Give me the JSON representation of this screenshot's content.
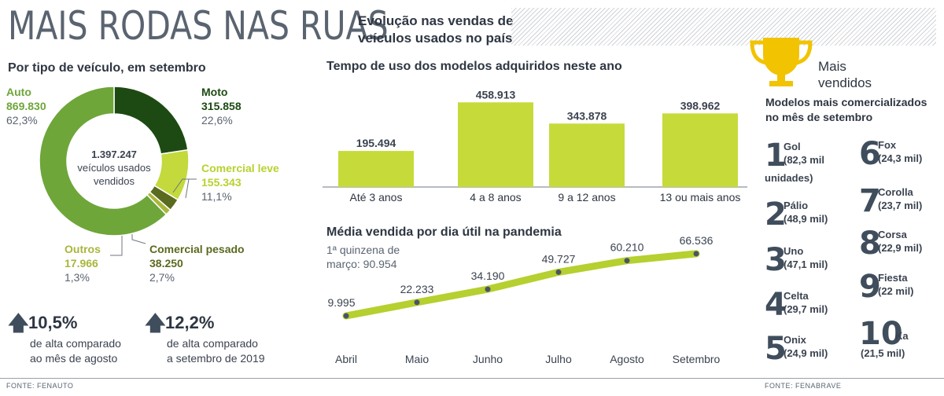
{
  "header": {
    "title": "MAIS RODAS NAS RUAS",
    "subtitle_line1": "Evolução nas vendas de",
    "subtitle_line2": "veículos usados no país"
  },
  "donut": {
    "section_title": "Por tipo de veículo, em setembro",
    "center_value": "1.397.247",
    "center_line1": "veículos usados",
    "center_line2": "vendidos",
    "segments": [
      {
        "name": "Auto",
        "value": "869.830",
        "pct": "62,3%",
        "share": 62.3,
        "color": "#6ea63a"
      },
      {
        "name": "Moto",
        "value": "315.858",
        "pct": "22,6%",
        "share": 22.6,
        "color": "#1d4a12"
      },
      {
        "name": "Comercial leve",
        "value": "155.343",
        "pct": "11,1%",
        "share": 11.1,
        "color": "#c3d93c"
      },
      {
        "name": "Comercial pesado",
        "value": "38.250",
        "pct": "2,7%",
        "share": 2.7,
        "color": "#5a6a1e"
      },
      {
        "name": "Outros",
        "value": "17.966",
        "pct": "1,3%",
        "share": 1.3,
        "color": "#a9b63a"
      }
    ]
  },
  "stats": [
    {
      "value": "10,5%",
      "line1": "de alta comparado",
      "line2": "ao mês de agosto"
    },
    {
      "value": "12,2%",
      "line1": "de alta comparado",
      "line2": "a setembro de 2019"
    }
  ],
  "chart_data": [
    {
      "type": "bar",
      "title": "Tempo de uso dos modelos adquiridos neste ano",
      "categories": [
        "Até 3 anos",
        "4 a 8 anos",
        "9 a 12 anos",
        "13 ou mais anos"
      ],
      "values": [
        195494,
        458913,
        343878,
        398962
      ],
      "value_labels": [
        "195.494",
        "458.913",
        "343.878",
        "398.962"
      ],
      "ylim": [
        0,
        460000
      ],
      "grid": false,
      "color": "#c6db3a"
    },
    {
      "type": "line",
      "title": "Média vendida por dia útil na pandemia",
      "annotation_line1": "1ª quinzena de",
      "annotation_line2": "março: 90.954",
      "categories": [
        "Abril",
        "Maio",
        "Junho",
        "Julho",
        "Agosto",
        "Setembro"
      ],
      "values": [
        9995,
        22233,
        34190,
        49727,
        60210,
        66536
      ],
      "value_labels": [
        "9.995",
        "22.233",
        "34.190",
        "49.727",
        "60.210",
        "66.536"
      ],
      "ylim": [
        0,
        70000
      ],
      "grid": false,
      "color": "#b5d02f"
    }
  ],
  "ranking": {
    "title_line1": "Mais",
    "title_line2": "vendidos",
    "subtitle": "Modelos mais comercializados no mês de setembro",
    "items": [
      {
        "rank": "1",
        "name": "Gol",
        "detail": "(82,3 mil",
        "detail2": "unidades)"
      },
      {
        "rank": "2",
        "name": "Pálio",
        "detail": "(48,9 mil)",
        "detail2": ""
      },
      {
        "rank": "3",
        "name": "Uno",
        "detail": "(47,1 mil)",
        "detail2": ""
      },
      {
        "rank": "4",
        "name": "Celta",
        "detail": "(29,7 mil)",
        "detail2": ""
      },
      {
        "rank": "5",
        "name": "Onix",
        "detail": "(24,9 mil)",
        "detail2": ""
      },
      {
        "rank": "6",
        "name": "Fox",
        "detail": "(24,3 mil)",
        "detail2": ""
      },
      {
        "rank": "7",
        "name": "Corolla",
        "detail": "(23,7 mil)",
        "detail2": ""
      },
      {
        "rank": "8",
        "name": "Corsa",
        "detail": "(22,9 mil)",
        "detail2": ""
      },
      {
        "rank": "9",
        "name": "Fiesta",
        "detail": "(22 mil)",
        "detail2": ""
      },
      {
        "rank": "10",
        "name": "Ka",
        "detail": "(21,5 mil)",
        "detail2": ""
      }
    ]
  },
  "sources": {
    "left": "FONTE: FENAUTO",
    "right": "FONTE: FENABRAVE"
  },
  "colors": {
    "trophy": "#f2c300",
    "text_dark": "#2e3642",
    "arrow": "#3f4d5c"
  }
}
